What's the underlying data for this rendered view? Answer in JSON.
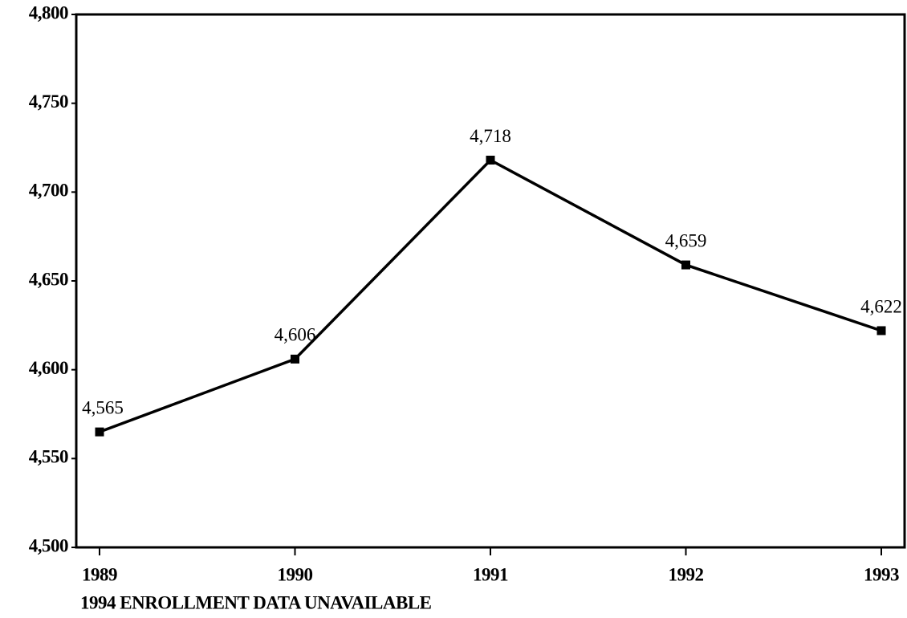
{
  "chart_data": {
    "type": "line",
    "categories": [
      "1989",
      "1990",
      "1991",
      "1992",
      "1993"
    ],
    "values": [
      4565,
      4606,
      4718,
      4659,
      4622
    ],
    "value_labels": [
      "4,565",
      "4,606",
      "4,718",
      "4,659",
      "4,622"
    ],
    "color": "#000000",
    "ylim": [
      4500,
      4800
    ],
    "yticks": [
      {
        "value": 4500,
        "label": "4,500"
      },
      {
        "value": 4550,
        "label": "4,550"
      },
      {
        "value": 4600,
        "label": "4,600"
      },
      {
        "value": 4650,
        "label": "4,650"
      },
      {
        "value": 4700,
        "label": "4,700"
      },
      {
        "value": 4750,
        "label": "4,750"
      },
      {
        "value": 4800,
        "label": "4,800"
      }
    ],
    "grid": false,
    "note": "1994 ENROLLMENT DATA UNAVAILABLE"
  }
}
